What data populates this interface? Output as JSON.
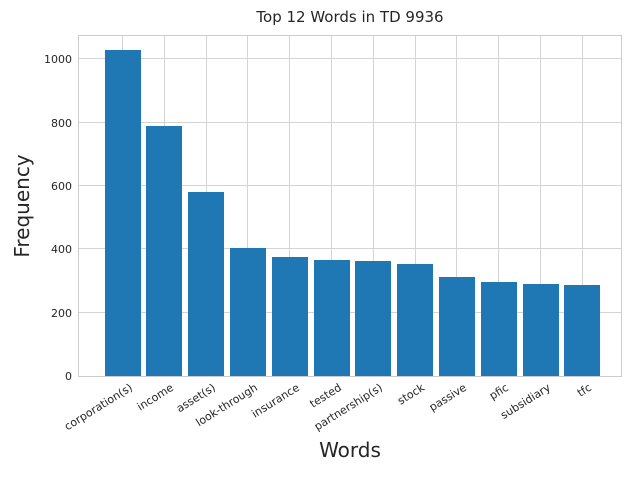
{
  "chart_data": {
    "type": "bar",
    "title": "Top 12 Words in TD 9936",
    "xlabel": "Words",
    "ylabel": "Frequency",
    "categories": [
      "corporation(s)",
      "income",
      "asset(s)",
      "look-through",
      "insurance",
      "tested",
      "partnership(s)",
      "stock",
      "passive",
      "pfic",
      "subsidiary",
      "tfc"
    ],
    "values": [
      1029,
      789,
      580,
      403,
      377,
      366,
      362,
      355,
      314,
      298,
      291,
      286
    ],
    "ylim": [
      0,
      1080
    ],
    "yticks": [
      0,
      200,
      400,
      600,
      800,
      1000
    ],
    "grid": true,
    "legend_position": "none",
    "bar_color": "#1f77b4",
    "grid_color": "#d4d4d4",
    "axis_color": "#cccccc",
    "text_color": "#262626"
  }
}
